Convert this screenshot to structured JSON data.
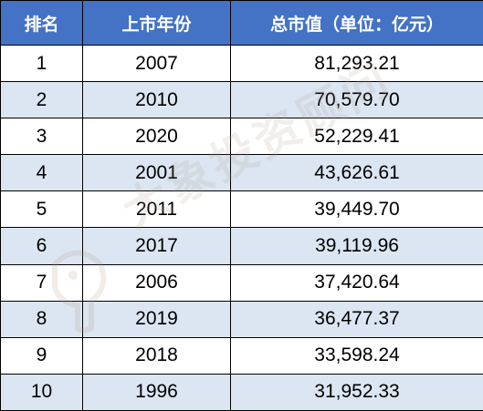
{
  "table": {
    "headers": {
      "rank": "排名",
      "year": "上市年份",
      "cap": "总市值（单位：亿元）"
    },
    "rows": [
      {
        "rank": "1",
        "year": "2007",
        "cap": "81,293.21"
      },
      {
        "rank": "2",
        "year": "2010",
        "cap": "70,579.70"
      },
      {
        "rank": "3",
        "year": "2020",
        "cap": "52,229.41"
      },
      {
        "rank": "4",
        "year": "2001",
        "cap": "43,626.61"
      },
      {
        "rank": "5",
        "year": "2011",
        "cap": "39,449.70"
      },
      {
        "rank": "6",
        "year": "2017",
        "cap": "39,119.96"
      },
      {
        "rank": "7",
        "year": "2006",
        "cap": "37,420.64"
      },
      {
        "rank": "8",
        "year": "2019",
        "cap": "36,477.37"
      },
      {
        "rank": "9",
        "year": "2018",
        "cap": "33,598.24"
      },
      {
        "rank": "10",
        "year": "1996",
        "cap": "31,952.33"
      }
    ]
  },
  "watermark": {
    "text": "大象投资顾问"
  },
  "colors": {
    "header_bg": "#4472c4",
    "header_text": "#ffffff",
    "alt_row_bg": "#dce6f2",
    "border": "#000000"
  }
}
